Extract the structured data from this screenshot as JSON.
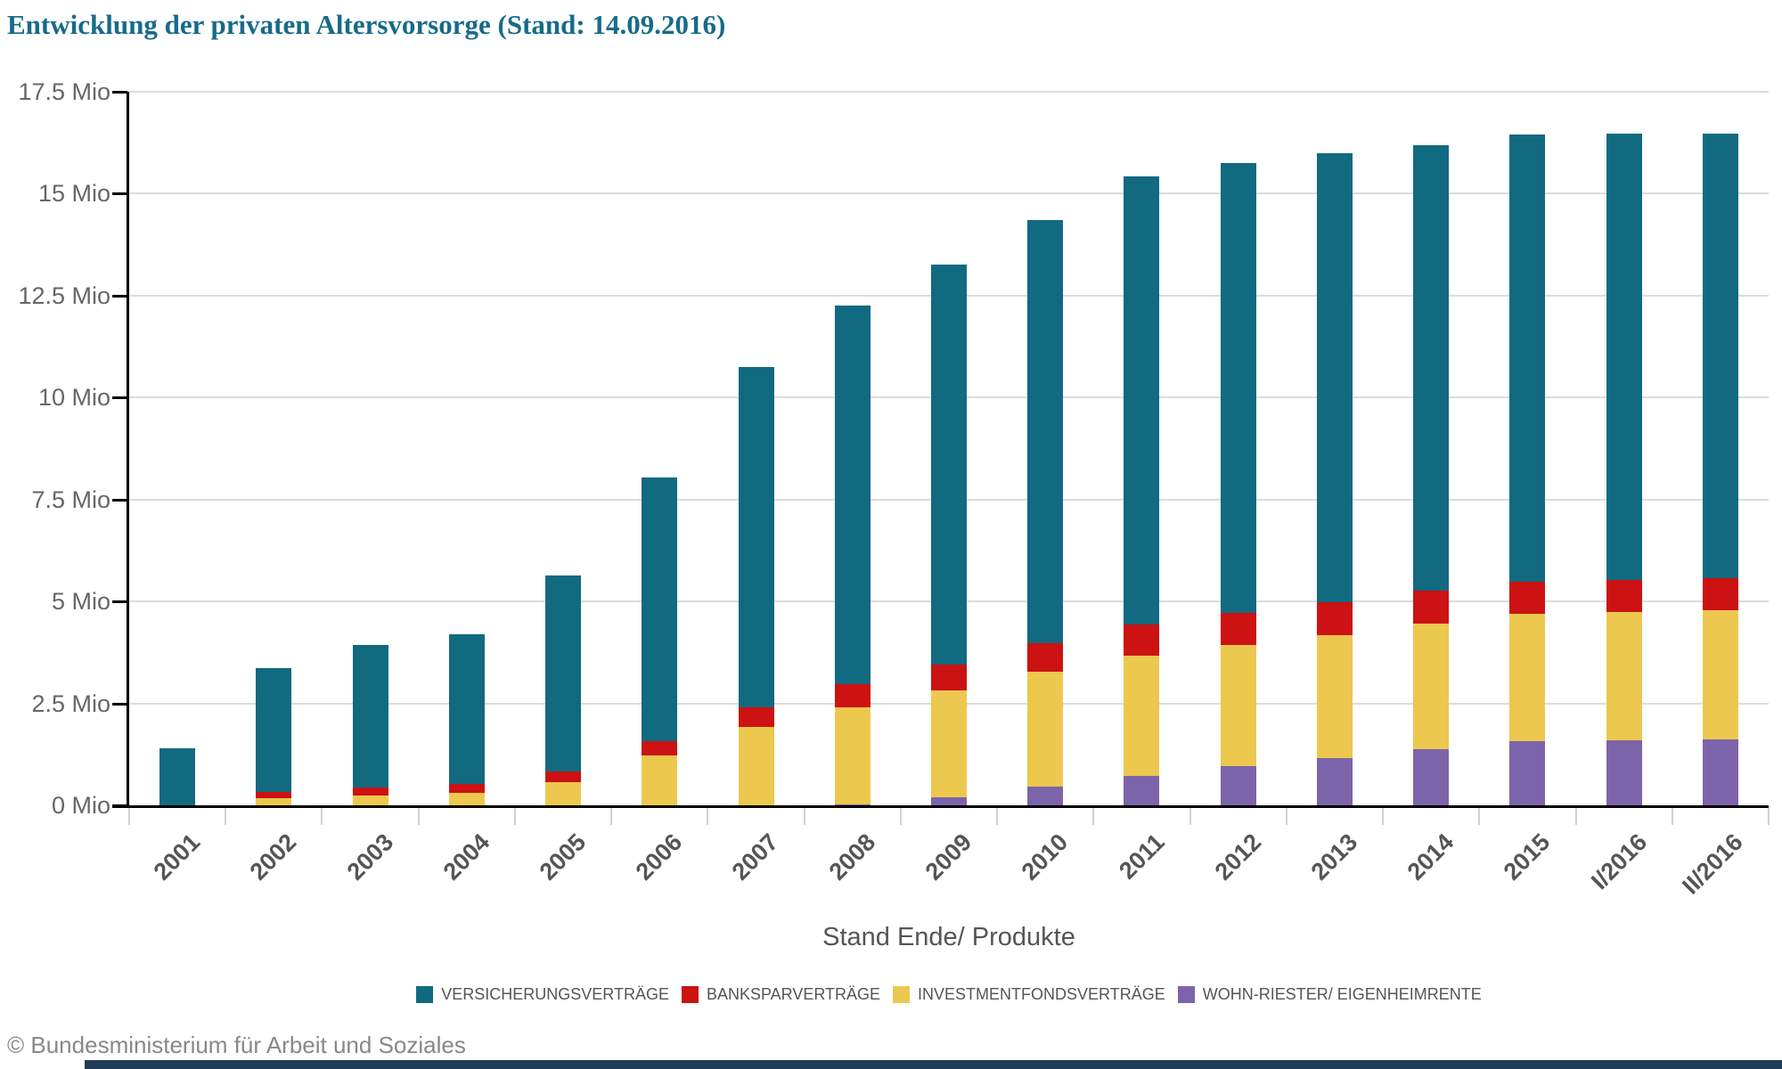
{
  "title": "Entwicklung der privaten Altersvorsorge (Stand: 14.09.2016)",
  "x_axis_title": "Stand Ende/ Produkte",
  "footer": "© Bundesministerium für Arbeit und Soziales",
  "colors": {
    "title_teal": "#176b89",
    "grid": "#dcdcdc",
    "axis": "#000000",
    "x_tick": "#c9d3dc",
    "y_label": "#666666",
    "x_label": "#555555",
    "legend_label": "#555555",
    "footer_gray": "#888888",
    "bottom_bar": "#223c55"
  },
  "chart_data": {
    "type": "bar",
    "stacked": true,
    "title": "Entwicklung der privaten Altersvorsorge (Stand: 14.09.2016)",
    "xlabel": "Stand Ende/ Produkte",
    "ylabel": "",
    "ylim": [
      0,
      17.5
    ],
    "grid": true,
    "legend_position": "bottom",
    "y_ticks": [
      {
        "v": 0,
        "label": "0 Mio"
      },
      {
        "v": 2.5,
        "label": "2.5 Mio"
      },
      {
        "v": 5,
        "label": "5 Mio"
      },
      {
        "v": 7.5,
        "label": "7.5 Mio"
      },
      {
        "v": 10,
        "label": "10 Mio"
      },
      {
        "v": 12.5,
        "label": "12.5 Mio"
      },
      {
        "v": 15,
        "label": "15 Mio"
      },
      {
        "v": 17.5,
        "label": "17.5 Mio"
      }
    ],
    "categories": [
      "2001",
      "2002",
      "2003",
      "2004",
      "2005",
      "2006",
      "2007",
      "2008",
      "2009",
      "2010",
      "2011",
      "2012",
      "2013",
      "2014",
      "2015",
      "I/2016",
      "II/2016"
    ],
    "series": [
      {
        "name": "VERSICHERUNGSVERTRÄGE",
        "color": "#116a80",
        "values": [
          1.4,
          3.047,
          3.486,
          3.66,
          4.797,
          6.468,
          8.355,
          9.285,
          9.794,
          10.38,
          10.998,
          11.023,
          11.013,
          10.916,
          10.965,
          10.948,
          10.914
        ]
      },
      {
        "name": "BANKSPARVERTRÄGE",
        "color": "#cc1212",
        "values": [
          0,
          0.15,
          0.197,
          0.213,
          0.26,
          0.351,
          0.48,
          0.554,
          0.633,
          0.703,
          0.75,
          0.781,
          0.805,
          0.825,
          0.804,
          0.792,
          0.774
        ]
      },
      {
        "name": "INVESTMENTFONDSVERTRÄGE",
        "color": "#ecc84e",
        "values": [
          0,
          0.174,
          0.241,
          0.316,
          0.574,
          1.231,
          1.922,
          2.386,
          2.629,
          2.815,
          2.953,
          2.989,
          3.027,
          3.071,
          3.125,
          3.139,
          3.164
        ]
      },
      {
        "name": "WOHN-RIESTER/ EIGENHEIMRENTE",
        "color": "#7c64aa",
        "values": [
          0,
          0,
          0,
          0,
          0,
          0,
          0,
          0.022,
          0.197,
          0.46,
          0.724,
          0.953,
          1.154,
          1.377,
          1.564,
          1.597,
          1.624
        ]
      }
    ],
    "stack_order_bottom_to_top": [
      "WOHN-RIESTER/ EIGENHEIMRENTE",
      "INVESTMENTFONDSVERTRÄGE",
      "BANKSPARVERTRÄGE",
      "VERSICHERUNGSVERTRÄGE"
    ]
  }
}
